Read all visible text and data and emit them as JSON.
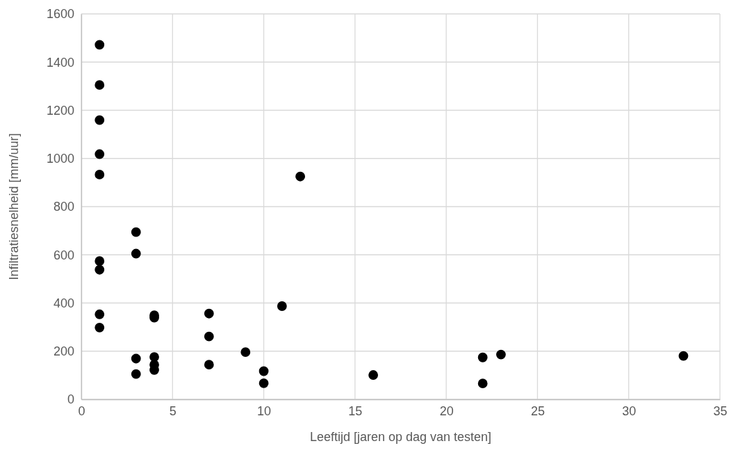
{
  "chart_data": {
    "type": "scatter",
    "xlabel": "Leeftijd [jaren op dag van testen]",
    "ylabel": "Infiltratiesnelheid [mm/uur]",
    "xlim": [
      0,
      35
    ],
    "xticks": [
      0,
      5,
      10,
      15,
      20,
      25,
      30,
      35
    ],
    "ylim": [
      0,
      1600
    ],
    "yticks": [
      0,
      200,
      400,
      600,
      800,
      1000,
      1200,
      1400,
      1600
    ],
    "grid": true,
    "marker": "circle",
    "series": [
      {
        "color": "#000000",
        "x": [
          1,
          1,
          1,
          1,
          1,
          1,
          1,
          1,
          1,
          3,
          3,
          3,
          3,
          4,
          4,
          4,
          4,
          4,
          7,
          7,
          7,
          9,
          10,
          10,
          11,
          12,
          16,
          22,
          22,
          23,
          33
        ],
        "values": [
          1472,
          1305,
          1159,
          1018,
          933,
          574,
          538,
          353,
          298,
          694,
          605,
          169,
          105,
          349,
          339,
          176,
          144,
          122,
          356,
          261,
          144,
          196,
          117,
          67,
          387,
          925,
          101,
          174,
          66,
          186,
          180
        ]
      }
    ]
  }
}
